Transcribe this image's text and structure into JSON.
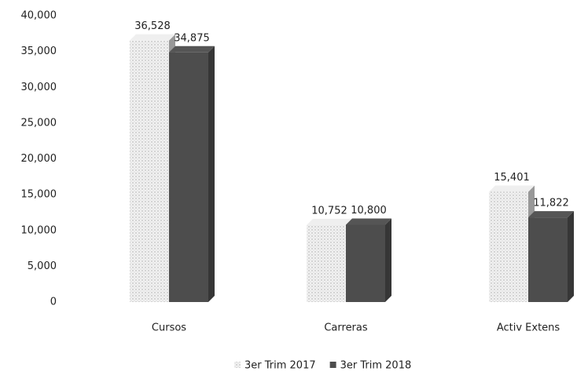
{
  "chart_data": {
    "type": "bar",
    "categories": [
      "Cursos",
      "Carreras",
      "Activ Extens"
    ],
    "series": [
      {
        "name": "3er Trim 2017",
        "color": "#d9d9d9",
        "values": [
          36528,
          10752,
          15401
        ],
        "value_labels": [
          "36,528",
          "10,752",
          "15,401"
        ]
      },
      {
        "name": "3er Trim 2018",
        "color": "#4d4d4d",
        "values": [
          34875,
          10800,
          11822
        ],
        "value_labels": [
          "34,875",
          "10,800",
          "11,822"
        ]
      }
    ],
    "ylim": [
      0,
      40000
    ],
    "yticks": [
      0,
      {
        "value": 5000,
        "label": "5,000"
      },
      {
        "value": 10000,
        "label": "10,000"
      },
      {
        "value": 15000,
        "label": "15,000"
      },
      {
        "value": 20000,
        "label": "20,000"
      },
      {
        "value": 25000,
        "label": "25,000"
      },
      {
        "value": 30000,
        "label": "30,000"
      },
      {
        "value": 35000,
        "label": "35,000"
      },
      {
        "value": 40000,
        "label": "40,000"
      }
    ],
    "grid": false,
    "legend": "bottom"
  }
}
